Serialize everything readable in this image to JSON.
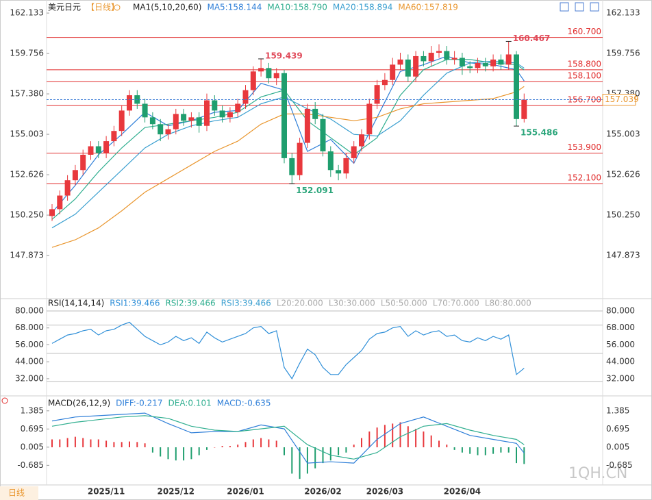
{
  "chart_data": [
    {
      "type": "candlestick",
      "title": "美元日元",
      "period": "【日线】",
      "indicator": "MA1(5,10,20,60)",
      "up_color": "#e8383d",
      "down_color": "#1f9e6e",
      "open": [
        150.2,
        150.6,
        151.4,
        152.3,
        152.9,
        153.8,
        154.3,
        153.9,
        154.6,
        155.2,
        156.4,
        157.3,
        156.8,
        156.0,
        155.6,
        155.0,
        155.3,
        156.2,
        155.8,
        156.0,
        155.5,
        157.0,
        156.4,
        156.0,
        156.3,
        156.8,
        157.6,
        158.7,
        158.9,
        158.3,
        158.6,
        153.6,
        152.6,
        154.5,
        156.5,
        155.9,
        154.0,
        152.9,
        152.7,
        153.6,
        154.3,
        155.0,
        156.8,
        157.9,
        158.2,
        159.1,
        159.4,
        158.4,
        159.6,
        159.3,
        159.8,
        159.9,
        159.4,
        159.5,
        159.0,
        158.9,
        159.2,
        159.0,
        159.4,
        159.1,
        159.7,
        155.9
      ],
      "high": [
        150.9,
        151.7,
        152.6,
        153.2,
        154.1,
        154.6,
        154.6,
        154.9,
        155.5,
        156.7,
        157.6,
        157.6,
        157.1,
        156.3,
        155.9,
        155.6,
        156.5,
        156.5,
        156.3,
        156.3,
        157.4,
        157.3,
        156.7,
        156.6,
        157.1,
        157.9,
        159.0,
        159.439,
        159.2,
        158.9,
        158.8,
        153.9,
        154.8,
        156.8,
        156.9,
        156.2,
        154.3,
        153.2,
        153.9,
        154.6,
        155.3,
        157.1,
        158.2,
        158.6,
        159.5,
        159.8,
        159.7,
        159.9,
        159.9,
        160.2,
        160.3,
        160.2,
        159.9,
        159.8,
        159.3,
        159.5,
        159.5,
        159.7,
        159.7,
        160.467,
        159.9,
        157.4
      ],
      "low": [
        149.9,
        150.3,
        151.1,
        152.0,
        152.6,
        153.5,
        153.6,
        153.6,
        154.3,
        154.9,
        156.1,
        156.5,
        155.7,
        155.3,
        154.6,
        154.7,
        155.0,
        155.5,
        155.4,
        155.1,
        155.2,
        156.1,
        155.7,
        155.7,
        156.0,
        156.5,
        157.3,
        158.4,
        158.0,
        157.9,
        153.3,
        152.091,
        152.3,
        154.2,
        155.6,
        153.7,
        152.5,
        152.3,
        152.4,
        153.3,
        154.0,
        154.7,
        156.5,
        157.6,
        157.9,
        158.8,
        158.1,
        158.1,
        159.0,
        159.0,
        159.5,
        159.1,
        159.1,
        158.5,
        158.6,
        158.6,
        158.7,
        158.7,
        158.8,
        158.8,
        155.486,
        155.7
      ],
      "close": [
        150.6,
        151.4,
        152.3,
        152.9,
        153.8,
        154.3,
        153.9,
        154.6,
        155.2,
        156.4,
        157.3,
        156.8,
        156.0,
        155.6,
        155.0,
        155.3,
        156.2,
        155.8,
        156.0,
        155.5,
        157.0,
        156.4,
        156.0,
        156.3,
        156.8,
        157.6,
        158.7,
        158.9,
        158.3,
        158.6,
        153.6,
        152.6,
        154.5,
        156.5,
        155.9,
        154.0,
        152.9,
        152.7,
        153.6,
        154.3,
        155.0,
        156.8,
        157.9,
        158.2,
        159.1,
        159.4,
        158.4,
        159.6,
        159.3,
        159.8,
        159.9,
        159.4,
        159.5,
        159.0,
        158.9,
        159.2,
        159.0,
        159.4,
        159.1,
        159.7,
        155.9,
        157.039
      ],
      "series": [
        {
          "name": "MA5:158.144",
          "color": "#2f7fd8",
          "x": [
            0,
            3,
            6,
            9,
            12,
            15,
            18,
            21,
            24,
            27,
            30,
            33,
            36,
            39,
            42,
            45,
            48,
            51,
            54,
            57,
            60,
            61
          ],
          "values": [
            150.4,
            152.0,
            153.8,
            155.0,
            156.3,
            155.5,
            155.8,
            156.3,
            156.4,
            158.0,
            157.6,
            154.0,
            154.7,
            153.3,
            156.0,
            158.7,
            159.1,
            159.6,
            159.2,
            159.1,
            158.8,
            158.144
          ]
        },
        {
          "name": "MA10:158.790",
          "color": "#2fae8f",
          "x": [
            0,
            3,
            6,
            9,
            12,
            15,
            18,
            21,
            24,
            27,
            30,
            33,
            36,
            39,
            42,
            45,
            48,
            51,
            54,
            57,
            60,
            61
          ],
          "values": [
            150.0,
            151.2,
            152.8,
            154.2,
            155.4,
            155.6,
            155.8,
            156.0,
            156.3,
            157.2,
            157.6,
            155.8,
            154.8,
            153.8,
            154.8,
            157.3,
            158.8,
            159.4,
            159.4,
            159.2,
            159.1,
            158.79
          ]
        },
        {
          "name": "MA20:158.894",
          "color": "#3a9fd0",
          "x": [
            0,
            3,
            6,
            9,
            12,
            15,
            18,
            21,
            24,
            27,
            30,
            33,
            36,
            39,
            42,
            45,
            48,
            51,
            54,
            57,
            60,
            61
          ],
          "values": [
            149.5,
            150.3,
            151.6,
            152.9,
            154.2,
            155.0,
            155.5,
            155.8,
            156.0,
            156.8,
            157.2,
            156.5,
            155.9,
            155.0,
            154.9,
            155.8,
            157.3,
            158.6,
            159.2,
            159.3,
            159.2,
            158.894
          ]
        },
        {
          "name": "MA60:157.819",
          "color": "#e9962e",
          "x": [
            0,
            3,
            6,
            9,
            12,
            15,
            18,
            21,
            24,
            27,
            30,
            33,
            36,
            39,
            42,
            45,
            48,
            51,
            54,
            57,
            60,
            61
          ],
          "values": [
            148.35,
            148.8,
            149.5,
            150.5,
            151.6,
            152.4,
            153.2,
            154.0,
            154.6,
            155.6,
            156.2,
            156.2,
            156.0,
            155.8,
            156.0,
            156.5,
            156.8,
            156.9,
            157.0,
            157.1,
            157.5,
            157.819
          ]
        }
      ],
      "levels": [
        {
          "value": 160.7,
          "label": "160.700"
        },
        {
          "value": 158.8,
          "label": "158.800"
        },
        {
          "value": 158.1,
          "label": "158.100"
        },
        {
          "value": 156.7,
          "label": "156.700"
        },
        {
          "value": 153.9,
          "label": "153.900"
        },
        {
          "value": 152.1,
          "label": "152.100"
        }
      ],
      "level_color": "#e02a2a",
      "current_color": "#3a7bd5",
      "ylim": [
        145.5,
        162.7
      ],
      "yticks": [
        162.133,
        159.756,
        {
          "value": 157.38,
          "label": "157.380"
        },
        155.003,
        152.626,
        {
          "value": 150.25,
          "label": "150.250"
        },
        147.873
      ]
    },
    {
      "type": "line",
      "title": "RSI(14,14,14)",
      "series": [
        {
          "name": "RSI1:39.466",
          "color": "#2f8fd8",
          "values": [
            57,
            60,
            63,
            64,
            66,
            67,
            63,
            66,
            67,
            70,
            72,
            67,
            62,
            59,
            56,
            58,
            62,
            59,
            61,
            57,
            65,
            61,
            58,
            60,
            62,
            64,
            68,
            69,
            64,
            66,
            40,
            32,
            43,
            53,
            49,
            40,
            35,
            35,
            42,
            47,
            52,
            60,
            64,
            65,
            68,
            69,
            62,
            66,
            63,
            65,
            66,
            62,
            63,
            59,
            58,
            61,
            59,
            62,
            60,
            63,
            35,
            39.466
          ]
        }
      ],
      "legend": [
        {
          "name": "RSI2:39.466",
          "color": "#2fae8f"
        },
        {
          "name": "RSI3:39.466",
          "color": "#3a9fd0"
        },
        {
          "name": "L20:20.000",
          "color": "#aaaaaa"
        },
        {
          "name": "L30:30.000",
          "color": "#aaaaaa"
        },
        {
          "name": "L50:50.000",
          "color": "#aaaaaa"
        },
        {
          "name": "L70:70.000",
          "color": "#aaaaaa"
        },
        {
          "name": "L80:80.000",
          "color": "#aaaaaa"
        }
      ],
      "levels": [
        30,
        50,
        70,
        80
      ],
      "ylim": [
        21.3,
        86.8
      ],
      "yticks": [
        {
          "value": 80,
          "label": "80.000"
        },
        {
          "value": 68,
          "label": "68.000"
        },
        {
          "value": 56,
          "label": "56.000"
        },
        {
          "value": 44,
          "label": "44.000"
        },
        {
          "value": 32,
          "label": "32.000"
        }
      ]
    },
    {
      "type": "macd",
      "title": "MACD(26,12,9)",
      "series": [
        {
          "name": "DIFF:-0.217",
          "color": "#2f7fd8",
          "x": [
            0,
            3,
            6,
            9,
            12,
            15,
            18,
            21,
            24,
            27,
            30,
            33,
            36,
            39,
            42,
            45,
            48,
            51,
            54,
            57,
            60,
            61
          ],
          "values": [
            1.0,
            1.15,
            1.2,
            1.25,
            1.3,
            0.9,
            0.55,
            0.6,
            0.6,
            0.85,
            0.7,
            -0.6,
            -0.55,
            -0.6,
            0.3,
            0.9,
            1.15,
            0.8,
            0.45,
            0.3,
            0.15,
            -0.217
          ]
        },
        {
          "name": "DEA:0.101",
          "color": "#2fae8f",
          "x": [
            0,
            3,
            6,
            9,
            12,
            15,
            18,
            21,
            24,
            27,
            30,
            33,
            36,
            39,
            42,
            45,
            48,
            51,
            54,
            57,
            60,
            61
          ],
          "values": [
            0.8,
            0.95,
            1.05,
            1.15,
            1.2,
            1.1,
            0.8,
            0.65,
            0.6,
            0.7,
            0.8,
            0.1,
            -0.3,
            -0.45,
            -0.2,
            0.4,
            0.8,
            0.9,
            0.65,
            0.45,
            0.3,
            0.101
          ]
        }
      ],
      "histogram": {
        "name": "MACD:-0.635",
        "color": "#2f7fd8",
        "up_color": "#e8383d",
        "down_color": "#1f9e6e",
        "values": [
          0.3,
          0.3,
          0.35,
          0.4,
          0.35,
          0.3,
          0.3,
          0.25,
          0.2,
          0.2,
          0.22,
          0.2,
          0.15,
          -0.2,
          -0.35,
          -0.45,
          -0.5,
          -0.5,
          -0.45,
          -0.3,
          -0.1,
          0,
          0.05,
          0.05,
          0.1,
          0.2,
          0.3,
          0.35,
          0.3,
          0.25,
          -0.3,
          -1.0,
          -1.2,
          -1.0,
          -0.8,
          -0.6,
          -0.5,
          -0.3,
          -0.2,
          0.1,
          0.35,
          0.6,
          0.75,
          0.85,
          0.9,
          0.95,
          0.8,
          0.7,
          0.6,
          0.45,
          0.25,
          0.1,
          -0.1,
          -0.2,
          -0.25,
          -0.3,
          -0.3,
          -0.25,
          -0.2,
          -0.2,
          -0.6,
          -0.635
        ]
      },
      "ylim": [
        -1.43,
        1.77
      ],
      "yticks": [
        1.385,
        0.695,
        0.005,
        -0.685
      ],
      "categories": [
        null,
        null,
        null,
        null,
        null,
        null,
        null,
        "2025/11",
        null,
        null,
        null,
        null,
        null,
        null,
        null,
        null,
        "2025/12",
        null,
        null,
        null,
        null,
        null,
        null,
        null,
        null,
        "2026/01",
        null,
        null,
        null,
        null,
        null,
        null,
        null,
        null,
        null,
        "2026/02",
        null,
        null,
        null,
        null,
        null,
        null,
        null,
        "2026/03",
        null,
        null,
        null,
        null,
        null,
        null,
        null,
        null,
        null,
        "2026/04",
        null,
        null,
        null,
        null,
        null,
        null,
        null,
        null
      ]
    }
  ],
  "watermark": "1QH.CN",
  "period_tab": "日线"
}
